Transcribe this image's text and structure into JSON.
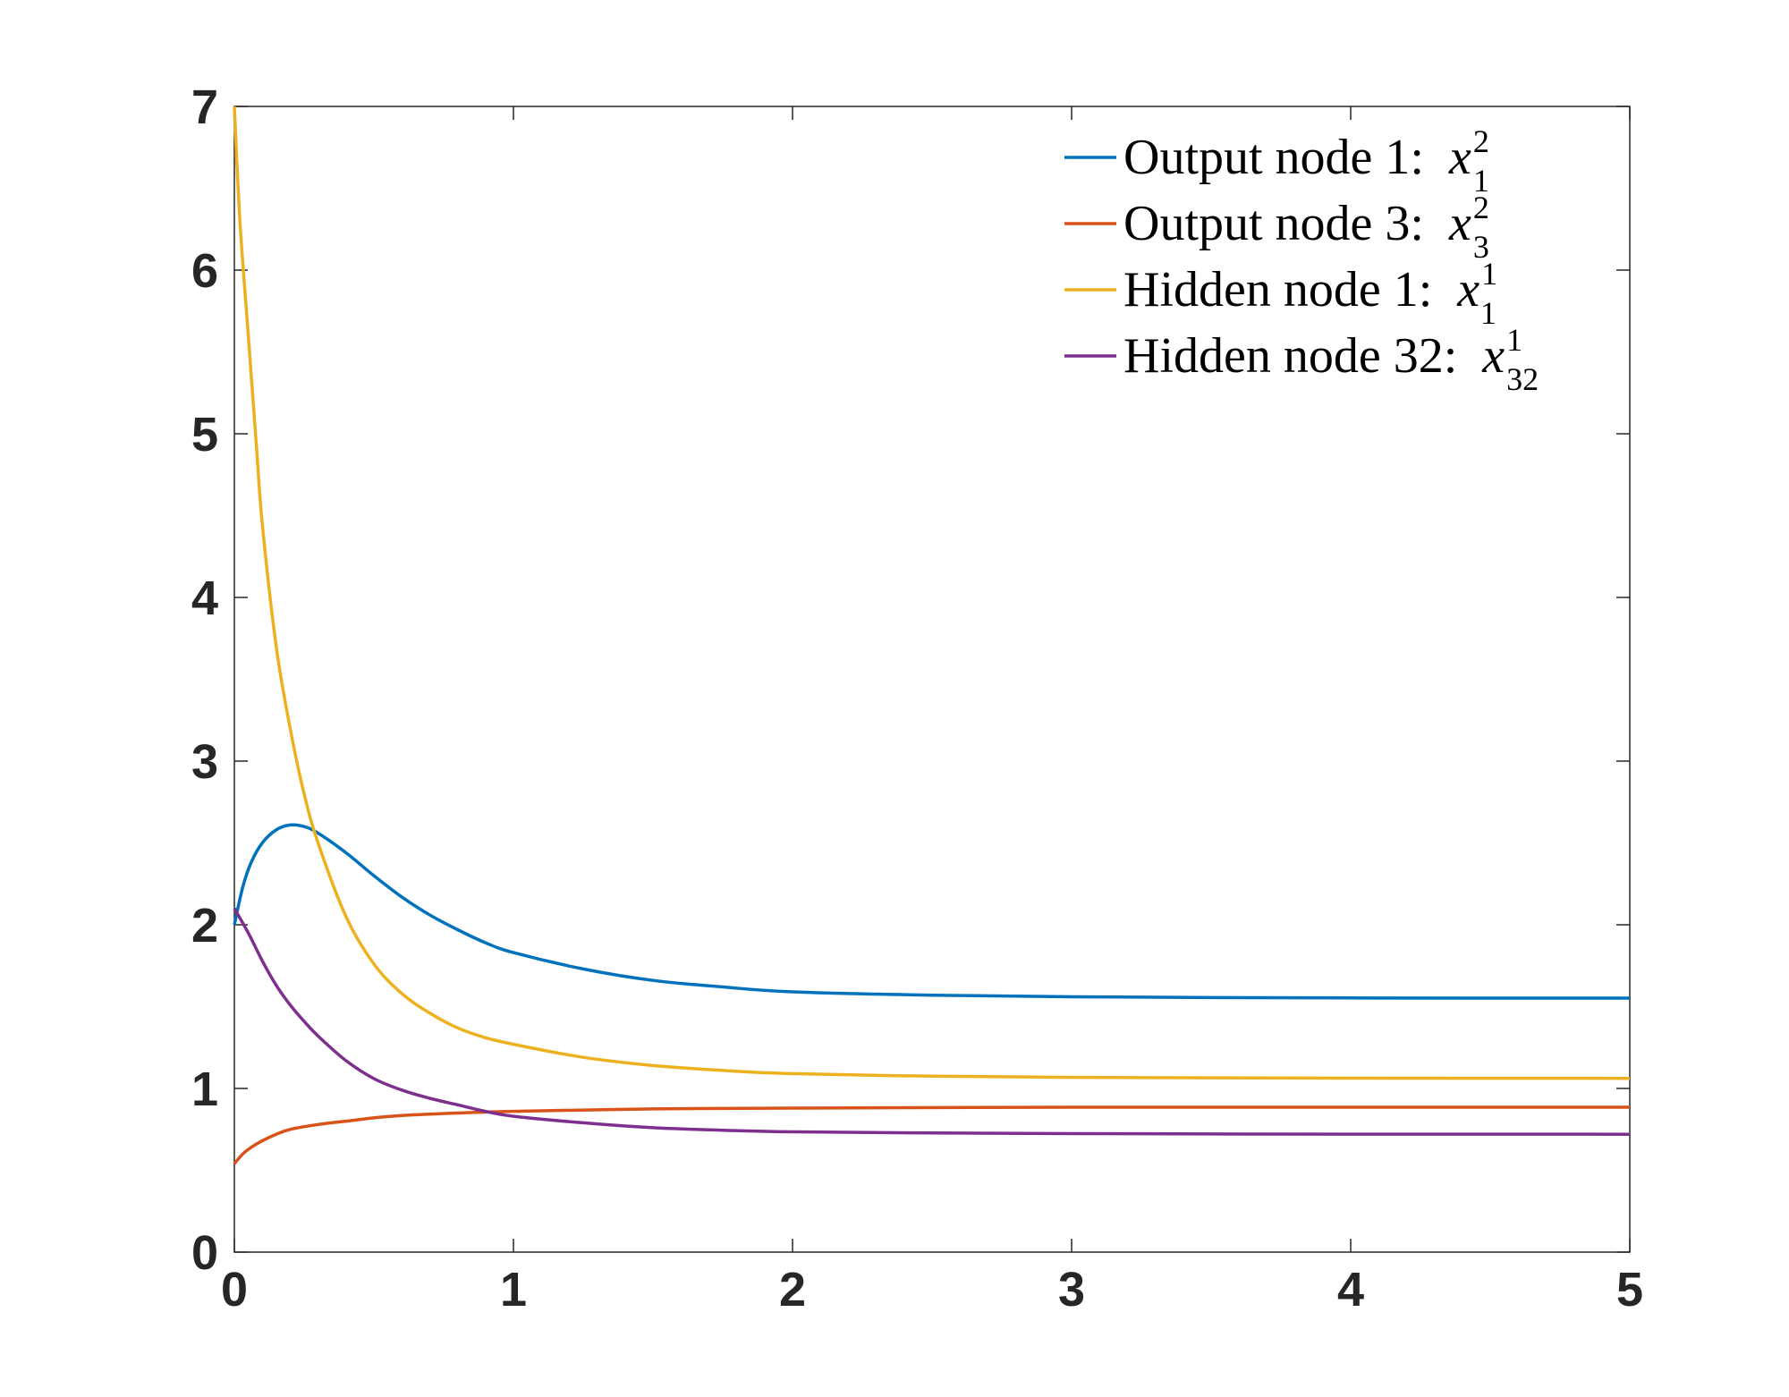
{
  "chart_data": {
    "type": "line",
    "title": "",
    "xlabel": "",
    "ylabel": "",
    "xlim": [
      0,
      5
    ],
    "ylim": [
      0,
      7
    ],
    "xticks": [
      "0",
      "1",
      "2",
      "3",
      "4",
      "5"
    ],
    "yticks": [
      "0",
      "1",
      "2",
      "3",
      "4",
      "5",
      "6",
      "7"
    ],
    "grid": false,
    "legend_position": "top-right",
    "series": [
      {
        "name": "Output node 1:",
        "symbol": "x",
        "sub": "1",
        "sup": "2",
        "color": "#0072BD",
        "points": [
          [
            0,
            2.0
          ],
          [
            0.03,
            2.23
          ],
          [
            0.06,
            2.38
          ],
          [
            0.1,
            2.5
          ],
          [
            0.15,
            2.58
          ],
          [
            0.2,
            2.61
          ],
          [
            0.25,
            2.6
          ],
          [
            0.3,
            2.56
          ],
          [
            0.4,
            2.44
          ],
          [
            0.5,
            2.3
          ],
          [
            0.6,
            2.17
          ],
          [
            0.7,
            2.06
          ],
          [
            0.8,
            1.97
          ],
          [
            0.9,
            1.89
          ],
          [
            1.0,
            1.83
          ],
          [
            1.25,
            1.73
          ],
          [
            1.5,
            1.66
          ],
          [
            1.75,
            1.62
          ],
          [
            2.0,
            1.59
          ],
          [
            2.5,
            1.57
          ],
          [
            3.0,
            1.56
          ],
          [
            3.5,
            1.555
          ],
          [
            4.0,
            1.553
          ],
          [
            4.5,
            1.552
          ],
          [
            5.0,
            1.552
          ]
        ]
      },
      {
        "name": "Output node 3:",
        "symbol": "x",
        "sub": "3",
        "sup": "2",
        "color": "#D95319",
        "points": [
          [
            0,
            0.54
          ],
          [
            0.03,
            0.6
          ],
          [
            0.06,
            0.64
          ],
          [
            0.1,
            0.68
          ],
          [
            0.15,
            0.72
          ],
          [
            0.2,
            0.75
          ],
          [
            0.3,
            0.78
          ],
          [
            0.4,
            0.8
          ],
          [
            0.5,
            0.82
          ],
          [
            0.6,
            0.835
          ],
          [
            0.8,
            0.85
          ],
          [
            1.0,
            0.86
          ],
          [
            1.5,
            0.875
          ],
          [
            2.0,
            0.88
          ],
          [
            3.0,
            0.885
          ],
          [
            4.0,
            0.885
          ],
          [
            5.0,
            0.885
          ]
        ]
      },
      {
        "name": "Hidden node 1:",
        "symbol": "x",
        "sub": "1",
        "sup": "1",
        "color": "#EDB120",
        "points": [
          [
            0,
            7.0
          ],
          [
            0.02,
            6.3
          ],
          [
            0.05,
            5.6
          ],
          [
            0.08,
            4.9
          ],
          [
            0.1,
            4.45
          ],
          [
            0.15,
            3.7
          ],
          [
            0.2,
            3.2
          ],
          [
            0.25,
            2.8
          ],
          [
            0.3,
            2.5
          ],
          [
            0.4,
            2.05
          ],
          [
            0.5,
            1.76
          ],
          [
            0.6,
            1.58
          ],
          [
            0.7,
            1.46
          ],
          [
            0.8,
            1.37
          ],
          [
            0.9,
            1.31
          ],
          [
            1.0,
            1.27
          ],
          [
            1.25,
            1.19
          ],
          [
            1.5,
            1.14
          ],
          [
            1.75,
            1.11
          ],
          [
            2.0,
            1.09
          ],
          [
            2.5,
            1.075
          ],
          [
            3.0,
            1.068
          ],
          [
            3.5,
            1.065
          ],
          [
            4.0,
            1.063
          ],
          [
            5.0,
            1.062
          ]
        ]
      },
      {
        "name": "Hidden node 32:",
        "symbol": "x",
        "sub": "32",
        "sup": "1",
        "color": "#7E2F8E",
        "points": [
          [
            0,
            2.1
          ],
          [
            0.05,
            1.95
          ],
          [
            0.1,
            1.78
          ],
          [
            0.15,
            1.63
          ],
          [
            0.2,
            1.51
          ],
          [
            0.25,
            1.41
          ],
          [
            0.3,
            1.32
          ],
          [
            0.4,
            1.17
          ],
          [
            0.5,
            1.06
          ],
          [
            0.6,
            0.99
          ],
          [
            0.7,
            0.94
          ],
          [
            0.8,
            0.9
          ],
          [
            0.9,
            0.86
          ],
          [
            1.0,
            0.83
          ],
          [
            1.25,
            0.79
          ],
          [
            1.5,
            0.76
          ],
          [
            1.75,
            0.745
          ],
          [
            2.0,
            0.735
          ],
          [
            2.5,
            0.728
          ],
          [
            3.0,
            0.724
          ],
          [
            3.5,
            0.722
          ],
          [
            4.0,
            0.721
          ],
          [
            5.0,
            0.72
          ]
        ]
      }
    ]
  }
}
